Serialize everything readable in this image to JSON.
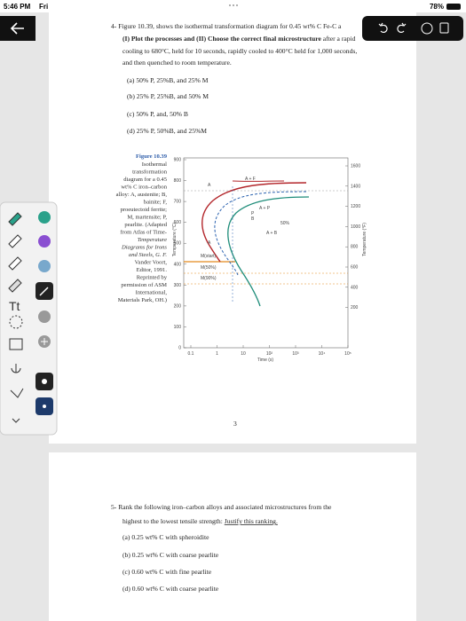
{
  "status_bar": {
    "time": "5:46 PM",
    "day": "Fri",
    "battery": "78%"
  },
  "question_4": {
    "line_1": "4- Figure 10.39, shows the isothermal transformation diagram for 0.45 wt% C Fe-C a",
    "line_2_bold": "(I) Plot the processes and (II) Choose the correct final microstructure",
    "line_2_rest": "after a rapid",
    "line_3": "cooling to 680°C, held for 10 seconds, rapidly cooled to 400°C held for 1,000 seconds,",
    "line_4": "and then quenched to room temperature.",
    "options": [
      "(a) 50% P, 25%B, and 25% M",
      "(b) 25% P, 25%B, and 50% M",
      "(c) 50% P, and, 50% B",
      "(d) 25% P, 50%B, and 25%M"
    ]
  },
  "figure": {
    "caption_title": "Figure 10.39",
    "caption_lines": [
      "Isothermal",
      "transformation",
      "diagram for a 0.45",
      "wt% C iron–carbon",
      "alloy: A, austenite; B,",
      "bainite; F,",
      "proeutectoid ferrite;",
      "M, martensite; P,",
      "pearlite. (Adapted",
      "from Atlas of Time-",
      "Temperature",
      "Diagrams for Irons",
      "and Steels, G. F.",
      "Vander Voort,",
      "Editor, 1991.",
      "Reprinted by",
      "permission of ASM",
      "International,",
      "Materials Park, OH.)"
    ],
    "y_label": "Temperature (°C)",
    "y2_label": "Temperature (°F)",
    "x_label": "Time (s)",
    "y_ticks": [
      "900",
      "800",
      "700",
      "600",
      "500",
      "400",
      "300",
      "200",
      "100",
      "0"
    ],
    "y2_ticks": [
      "1600",
      "1400",
      "1200",
      "1000",
      "800",
      "600",
      "400",
      "200"
    ],
    "x_ticks": [
      "0.1",
      "1",
      "10",
      "10²",
      "10³",
      "10⁴",
      "10⁵"
    ],
    "region_labels": [
      "A",
      "A + F",
      "A + P",
      "P",
      "B",
      "A + B",
      "50%",
      "A",
      "M(start)",
      "M(50%)",
      "M(90%)"
    ]
  },
  "page_number": "3",
  "question_5": {
    "line_1": "5- Rank the following iron–carbon alloys and associated microstructures from the",
    "line_2": "highest to the lowest tensile strength:",
    "line_2_underlined": "Justify this ranking.",
    "options": [
      "(a) 0.25 wt% C with spheroidite",
      "(b) 0.25 wt% C with coarse pearlite",
      "(c) 0.60 wt% C with fine pearlite",
      "(d) 0.60 wt% C with coarse pearlite"
    ]
  }
}
